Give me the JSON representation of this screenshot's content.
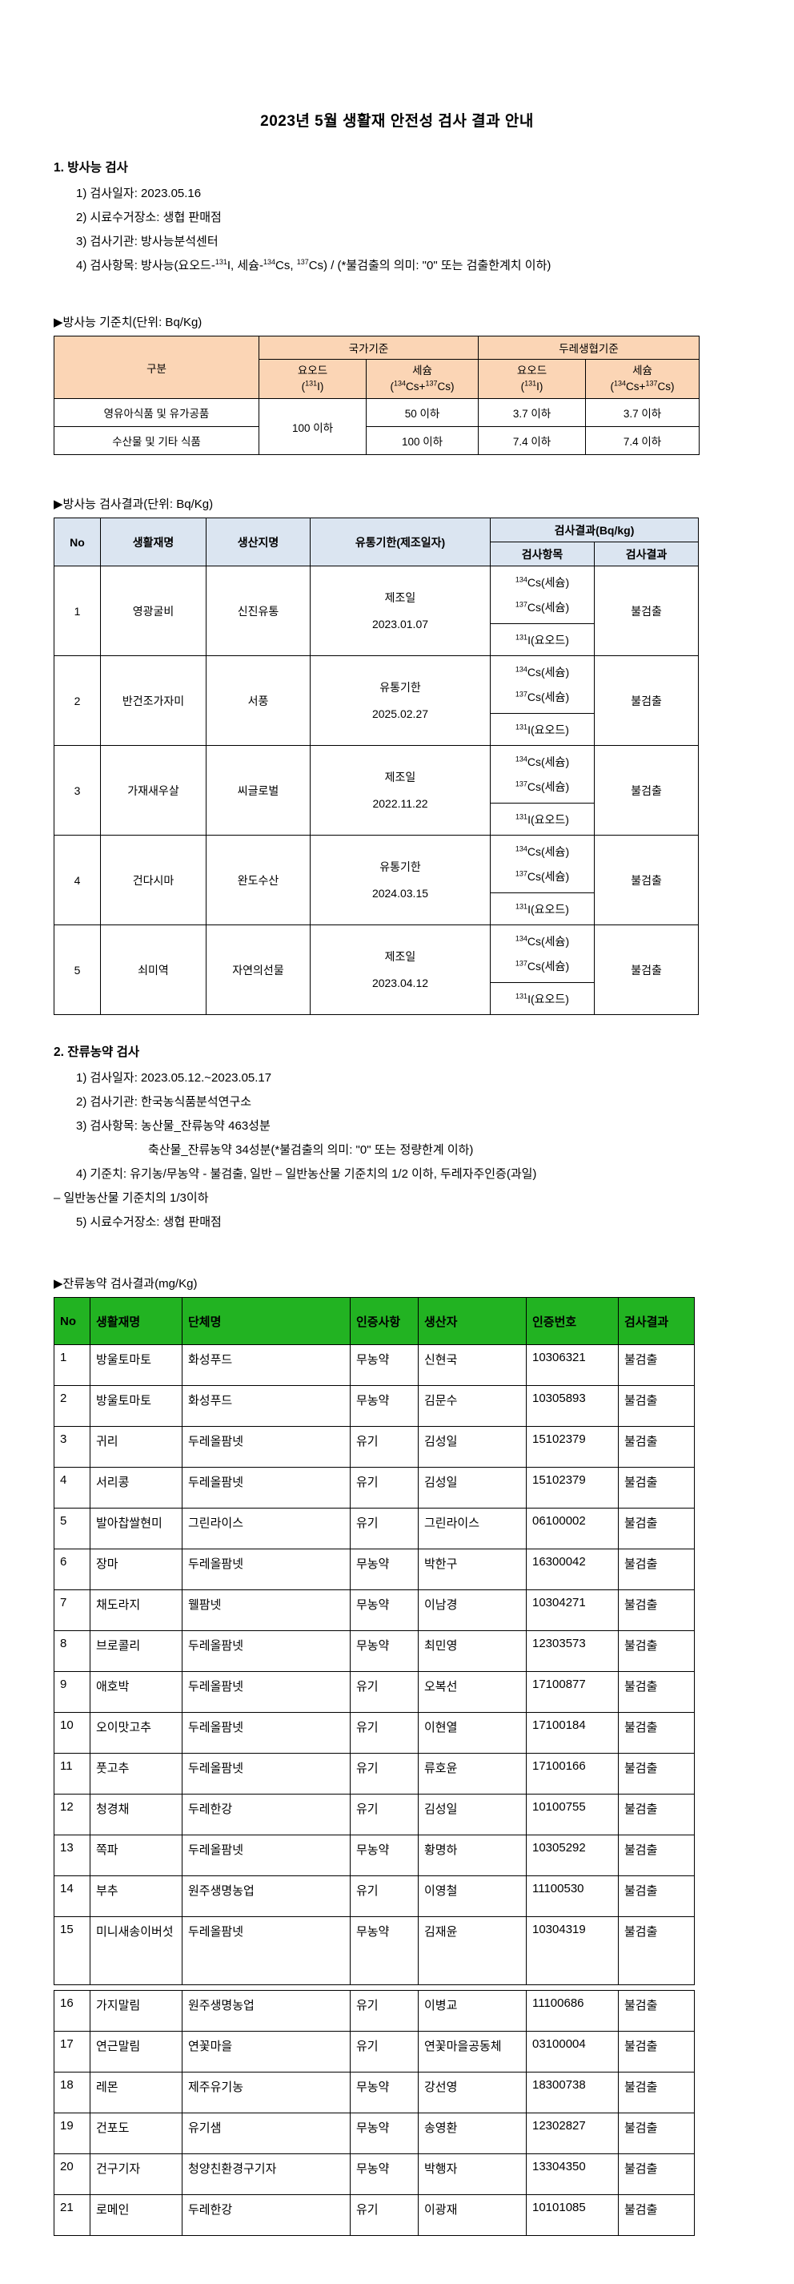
{
  "colors": {
    "standards_header_bg": "#FBD5B5",
    "rad_header_bg": "#DBE5F1",
    "pesticide_header_bg": "#22B322"
  },
  "page": {
    "title": "2023년 5월 생활재 안전성 검사 결과 안내"
  },
  "section1": {
    "heading": "1. 방사능 검사",
    "item1": "1) 검사일자: 2023.05.16",
    "item2": "2) 시료수거장소: 생협 판매점",
    "item3": "3) 검사기관: 방사능분석센터",
    "item4_segments": [
      {
        "t": "4) 검사항목: 방사능(요오드-"
      },
      {
        "t": "131",
        "sup": true
      },
      {
        "t": "I, 세슘-"
      },
      {
        "t": "134",
        "sup": true
      },
      {
        "t": "Cs, "
      },
      {
        "t": "137",
        "sup": true
      },
      {
        "t": "Cs) / (*불검출의 의미: \"0\" 또는 검출한계치 이하)"
      }
    ]
  },
  "std_table": {
    "caption": "▶방사능 기준치(단위: Bq/Kg)",
    "header": {
      "col_group": "구분",
      "group1": "국가기준",
      "group2": "두레생협기준",
      "iodine_line1": "요오드",
      "iodine_line2_segments": [
        {
          "t": "("
        },
        {
          "t": "131",
          "sup": true
        },
        {
          "t": "I)"
        }
      ],
      "cesium_line1": "세슘",
      "cesium_line2_segments": [
        {
          "t": "("
        },
        {
          "t": "134",
          "sup": true
        },
        {
          "t": "Cs+"
        },
        {
          "t": "137",
          "sup": true
        },
        {
          "t": "Cs)"
        }
      ]
    },
    "row1": {
      "label": "영유아식품 및 유가공품",
      "iodine_national": "100 이하",
      "cesium_national": "50 이하",
      "iodine_dure": "3.7 이하",
      "cesium_dure": "3.7 이하"
    },
    "row2": {
      "label": "수산물 및 기타 식품",
      "cesium_national": "100 이하",
      "iodine_dure": "7.4 이하",
      "cesium_dure": "7.4 이하"
    }
  },
  "rad_results_table": {
    "caption": "▶방사능 검사결과(단위: Bq/Kg)",
    "headers": {
      "no": "No",
      "name": "생활재명",
      "origin": "생산지명",
      "expiry": "유통기한(제조일자)",
      "result_group": "검사결과(Bq/kg)",
      "item": "검사항목",
      "result": "검사결과"
    },
    "isotopes": {
      "cs134_segments": [
        {
          "t": "134",
          "sup": true
        },
        {
          "t": "Cs(세슘)"
        }
      ],
      "cs137_segments": [
        {
          "t": "137",
          "sup": true
        },
        {
          "t": "Cs(세슘)"
        }
      ],
      "i131_segments": [
        {
          "t": "131",
          "sup": true
        },
        {
          "t": "I(요오드)"
        }
      ]
    },
    "rows": [
      {
        "no": "1",
        "name": "영광굴비",
        "origin": "신진유통",
        "date_type": "제조일",
        "date": "2023.01.07",
        "result": "불검출"
      },
      {
        "no": "2",
        "name": "반건조가자미",
        "origin": "서풍",
        "date_type": "유통기한",
        "date": "2025.02.27",
        "result": "불검출"
      },
      {
        "no": "3",
        "name": "가재새우살",
        "origin": "씨글로벌",
        "date_type": "제조일",
        "date": "2022.11.22",
        "result": "불검출"
      },
      {
        "no": "4",
        "name": "건다시마",
        "origin": "완도수산",
        "date_type": "유통기한",
        "date": "2024.03.15",
        "result": "불검출"
      },
      {
        "no": "5",
        "name": "쇠미역",
        "origin": "자연의선물",
        "date_type": "제조일",
        "date": "2023.04.12",
        "result": "불검출"
      }
    ]
  },
  "section2": {
    "heading": "2. 잔류농약 검사",
    "item1": "1) 검사일자: 2023.05.12.~2023.05.17",
    "item2": "2) 검사기관: 한국농식품분석연구소",
    "item3": "3) 검사항목: 농산물_잔류농약 463성분",
    "item3_cont": "축산물_잔류농약 34성분(*불검출의 의미: \"0\" 또는 정량한계 이하)",
    "item4": "4) 기준치: 유기농/무농약 - 불검출, 일반 – 일반농산물 기준치의 1/2 이하, 두레자주인증(과일)",
    "item4_cont": "– 일반농산물 기준치의 1/3이하",
    "item5": "5) 시료수거장소: 생협 판매점"
  },
  "pesticide_table": {
    "caption": "▶잔류농약 검사결과(mg/Kg)",
    "headers": [
      "No",
      "생활재명",
      "단체명",
      "인증사항",
      "생산자",
      "인증번호",
      "검사결과"
    ],
    "split_after_row": 15,
    "rows": [
      [
        "1",
        "방울토마토",
        "화성푸드",
        "무농약",
        "신현국",
        "10306321",
        "불검출"
      ],
      [
        "2",
        "방울토마토",
        "화성푸드",
        "무농약",
        "김문수",
        "10305893",
        "불검출"
      ],
      [
        "3",
        "귀리",
        "두레올팜넷",
        "유기",
        "김성일",
        "15102379",
        "불검출"
      ],
      [
        "4",
        "서리콩",
        "두레올팜넷",
        "유기",
        "김성일",
        "15102379",
        "불검출"
      ],
      [
        "5",
        "발아찹쌀현미",
        "그린라이스",
        "유기",
        "그린라이스",
        "06100002",
        "불검출"
      ],
      [
        "6",
        "장마",
        "두레올팜넷",
        "무농약",
        "박한구",
        "16300042",
        "불검출"
      ],
      [
        "7",
        "채도라지",
        "웰팜넷",
        "무농약",
        "이남경",
        "10304271",
        "불검출"
      ],
      [
        "8",
        "브로콜리",
        "두레올팜넷",
        "무농약",
        "최민영",
        "12303573",
        "불검출"
      ],
      [
        "9",
        "애호박",
        "두레올팜넷",
        "유기",
        "오복선",
        "17100877",
        "불검출"
      ],
      [
        "10",
        "오이맛고추",
        "두레올팜넷",
        "유기",
        "이현열",
        "17100184",
        "불검출"
      ],
      [
        "11",
        "풋고추",
        "두레올팜넷",
        "유기",
        "류호윤",
        "17100166",
        "불검출"
      ],
      [
        "12",
        "청경채",
        "두레한강",
        "유기",
        "김성일",
        "10100755",
        "불검출"
      ],
      [
        "13",
        "쪽파",
        "두레올팜넷",
        "무농약",
        "황명하",
        "10305292",
        "불검출"
      ],
      [
        "14",
        "부추",
        "원주생명농업",
        "유기",
        "이영철",
        "11100530",
        "불검출"
      ],
      [
        "15",
        "미니새송이버섯",
        "두레올팜넷",
        "무농약",
        "김재윤",
        "10304319",
        "불검출"
      ],
      [
        "16",
        "가지말림",
        "원주생명농업",
        "유기",
        "이병교",
        "11100686",
        "불검출"
      ],
      [
        "17",
        "연근말림",
        "연꽃마을",
        "유기",
        "연꽃마을공동체",
        "03100004",
        "불검출"
      ],
      [
        "18",
        "레몬",
        "제주유기농",
        "무농약",
        "강선영",
        "18300738",
        "불검출"
      ],
      [
        "19",
        "건포도",
        "유기샘",
        "무농약",
        "송영환",
        "12302827",
        "불검출"
      ],
      [
        "20",
        "건구기자",
        "청양친환경구기자",
        "무농약",
        "박행자",
        "13304350",
        "불검출"
      ],
      [
        "21",
        "로메인",
        "두레한강",
        "유기",
        "이광재",
        "10101085",
        "불검출"
      ]
    ]
  }
}
